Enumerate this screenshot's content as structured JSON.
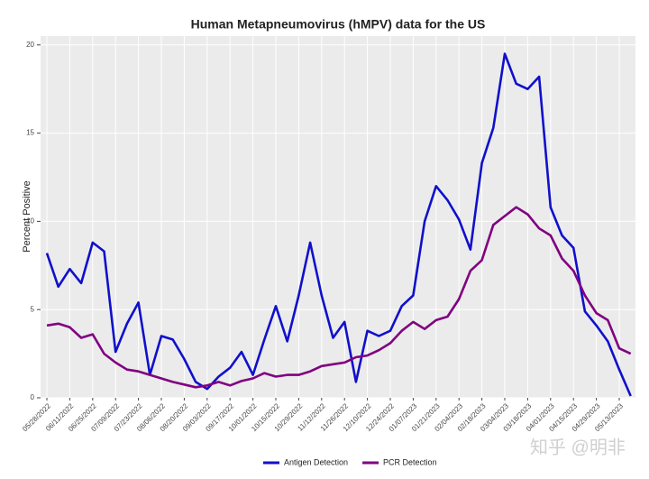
{
  "chart_data": {
    "type": "line",
    "title": "Human Metapneumovirus (hMPV) data for the US",
    "y_label": "Percent Positive",
    "watermark": "知乎 @明非",
    "categories": [
      "05/28/2022",
      null,
      "06/11/2022",
      null,
      "06/25/2022",
      null,
      "07/09/2022",
      null,
      "07/23/2022",
      null,
      "08/06/2022",
      null,
      "08/20/2022",
      null,
      "09/03/2022",
      null,
      "09/17/2022",
      null,
      "10/01/2022",
      null,
      "10/15/2022",
      null,
      "10/29/2022",
      null,
      "11/12/2022",
      null,
      "11/26/2022",
      null,
      "12/10/2022",
      null,
      "12/24/2022",
      null,
      "01/07/2023",
      null,
      "01/21/2023",
      null,
      "02/04/2023",
      null,
      "02/18/2023",
      null,
      "03/04/2023",
      null,
      "03/18/2023",
      null,
      "04/01/2023",
      null,
      "04/15/2023",
      null,
      "04/29/2023",
      null,
      "05/13/2023",
      null
    ],
    "series": [
      {
        "name": "Antigen Detection",
        "color": "#1010cc",
        "values": [
          8.2,
          6.3,
          7.3,
          6.5,
          8.8,
          8.3,
          2.6,
          4.2,
          5.4,
          1.3,
          3.5,
          3.3,
          2.2,
          0.9,
          0.5,
          1.2,
          1.7,
          2.6,
          1.3,
          3.3,
          5.2,
          3.2,
          5.8,
          8.8,
          5.8,
          3.4,
          4.3,
          0.9,
          3.8,
          3.5,
          3.8,
          5.2,
          5.8,
          10.0,
          12.0,
          11.2,
          10.1,
          8.4,
          13.3,
          15.3,
          19.5,
          17.8,
          17.5,
          18.2,
          10.8,
          9.2,
          8.5,
          4.9,
          4.1,
          3.2,
          1.6,
          0.1
        ]
      },
      {
        "name": "PCR Detection",
        "color": "#800080",
        "values": [
          4.1,
          4.2,
          4.0,
          3.4,
          3.6,
          2.5,
          2.0,
          1.6,
          1.5,
          1.3,
          1.1,
          0.9,
          0.75,
          0.6,
          0.7,
          0.9,
          0.7,
          0.95,
          1.1,
          1.4,
          1.2,
          1.3,
          1.3,
          1.5,
          1.8,
          1.9,
          2.0,
          2.3,
          2.4,
          2.7,
          3.1,
          3.8,
          4.3,
          3.9,
          4.4,
          4.6,
          5.6,
          7.2,
          7.8,
          9.8,
          10.3,
          10.8,
          10.4,
          9.6,
          9.2,
          7.9,
          7.2,
          5.8,
          4.8,
          4.4,
          2.8,
          2.5
        ]
      }
    ],
    "ylim": [
      0,
      20.5
    ],
    "yticks": [
      0,
      5,
      10,
      15,
      20
    ],
    "grid": true,
    "legend": "bottom"
  }
}
